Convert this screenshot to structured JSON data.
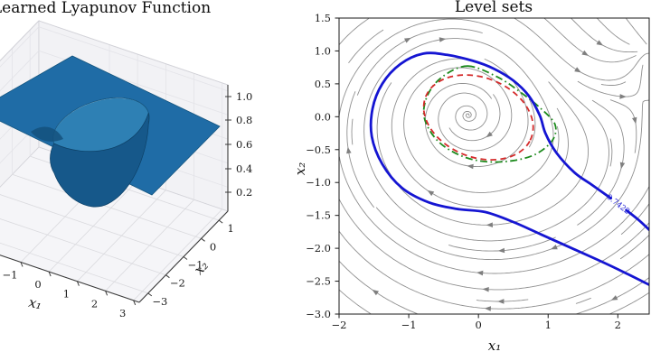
{
  "figure": {
    "background": "#ffffff"
  },
  "left_panel": {
    "title": "Learned Lyapunov Function",
    "xlabel": "x₁",
    "ylabel": "x₂",
    "z_ticks": [
      "1.0",
      "0.8",
      "0.6",
      "0.4",
      "0.2"
    ],
    "x1_ticks": [
      "−1",
      "0",
      "1",
      "2",
      "3"
    ],
    "x2_ticks": [
      "1",
      "0",
      "−1",
      "−2",
      "−3"
    ],
    "surface_color": "#1f6ca6"
  },
  "right_panel": {
    "title": "Level sets",
    "xlabel": "x₁",
    "ylabel": "x₂",
    "x_ticks": [
      "−2",
      "−1",
      "0",
      "1",
      "2"
    ],
    "y_ticks": [
      "1.5",
      "1.0",
      "0.5",
      "0.0",
      "−0.5",
      "−1.0",
      "−1.5",
      "−2.0",
      "−2.5",
      "−3.0"
    ],
    "level_label": "0.7422",
    "colors": {
      "level_set": "#1515d2",
      "red_ellipse": "#d42a2a",
      "green_curve": "#1d8a1d",
      "streamlines": "#909090",
      "arrows": "#7f7f7f"
    }
  },
  "chart_data": [
    {
      "type": "surface3d",
      "title": "Learned Lyapunov Function",
      "xlabel": "x1",
      "ylabel": "x2",
      "x_ticks": [
        -1,
        0,
        1,
        2,
        3
      ],
      "y_ticks": [
        1,
        0,
        -1,
        -2,
        -3
      ],
      "z_ticks": [
        0.2,
        0.4,
        0.6,
        0.8,
        1.0
      ],
      "z_range": [
        0,
        1.05
      ],
      "surface_color": "#1f6ca6",
      "description": "Flat plateau at V≈1.0 with a deep funnel-shaped well descending toward V≈0 near the origin"
    },
    {
      "type": "contour_streamplot",
      "title": "Level sets",
      "xlabel": "x1",
      "ylabel": "x2",
      "xlim": [
        -2,
        2.45
      ],
      "ylim": [
        -3,
        1.5
      ],
      "x_ticks": [
        -2,
        -1,
        0,
        1,
        2
      ],
      "y_ticks": [
        1.5,
        1.0,
        0.5,
        0.0,
        -0.5,
        -1.0,
        -1.5,
        -2.0,
        -2.5,
        -3.0
      ],
      "grid": false,
      "level_set": {
        "value": 0.7422,
        "color": "#1515d2",
        "label_pos": [
          2.0,
          -1.33
        ],
        "label_rotation_deg": 38,
        "segment_right": [
          [
            2.46,
            -1.73
          ],
          [
            2.3,
            -1.57
          ],
          [
            2.12,
            -1.42
          ]
        ],
        "segment_main": [
          [
            1.9,
            -1.24
          ],
          [
            1.62,
            -1.03
          ],
          [
            1.38,
            -0.85
          ],
          [
            1.12,
            -0.55
          ],
          [
            0.96,
            -0.25
          ],
          [
            0.88,
            0.02
          ],
          [
            0.72,
            0.32
          ],
          [
            0.5,
            0.55
          ],
          [
            0.22,
            0.73
          ],
          [
            -0.08,
            0.85
          ],
          [
            -0.45,
            0.94
          ],
          [
            -0.79,
            0.96
          ],
          [
            -1.12,
            0.8
          ],
          [
            -1.38,
            0.5
          ],
          [
            -1.52,
            0.12
          ],
          [
            -1.53,
            -0.3
          ],
          [
            -1.38,
            -0.72
          ],
          [
            -1.1,
            -1.08
          ],
          [
            -0.72,
            -1.3
          ],
          [
            -0.32,
            -1.4
          ],
          [
            0.1,
            -1.45
          ],
          [
            0.5,
            -1.6
          ],
          [
            0.9,
            -1.79
          ],
          [
            1.3,
            -1.98
          ],
          [
            1.7,
            -2.17
          ],
          [
            2.1,
            -2.37
          ],
          [
            2.46,
            -2.56
          ]
        ]
      },
      "red_ellipse": {
        "style": "dashed",
        "color": "#d42a2a",
        "center": [
          0.0,
          -0.01
        ],
        "a": 0.82,
        "b": 0.6,
        "rotation_deg": -25
      },
      "green_curve": {
        "style": "dashdot",
        "color": "#1d8a1d",
        "points": [
          [
            -0.15,
            0.77
          ],
          [
            -0.5,
            0.62
          ],
          [
            -0.72,
            0.35
          ],
          [
            -0.78,
            0.0
          ],
          [
            -0.6,
            -0.35
          ],
          [
            -0.28,
            -0.58
          ],
          [
            0.08,
            -0.68
          ],
          [
            0.48,
            -0.67
          ],
          [
            0.82,
            -0.57
          ],
          [
            1.06,
            -0.36
          ],
          [
            1.1,
            -0.12
          ],
          [
            0.9,
            0.12
          ],
          [
            0.62,
            0.36
          ],
          [
            0.28,
            0.6
          ]
        ]
      },
      "streamlines": {
        "color": "#909090",
        "spiral_center": [
          -0.15,
          0.03
        ],
        "spiral_decay": 0.16,
        "saddle_point": [
          2.35,
          0.25
        ],
        "description": "Gray streamlines with arrowheads spiraling around the origin; deflection structure near right edge"
      }
    }
  ]
}
